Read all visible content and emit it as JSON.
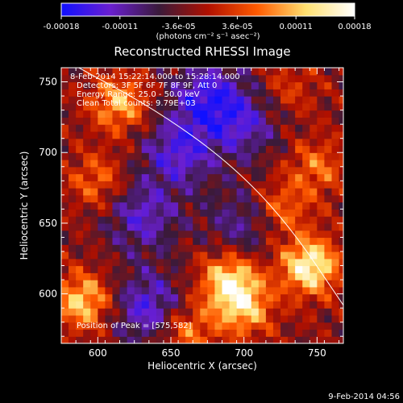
{
  "colorbar": {
    "tick_labels": [
      "-0.00018",
      "-0.00011",
      "-3.6e-05",
      "3.6e-05",
      "0.00011",
      "0.00018"
    ],
    "units_label": "(photons cm⁻² s⁻¹ asec⁻²)",
    "range": [
      -0.00018,
      0.00018
    ],
    "colors": [
      "#1010ff",
      "#6a1fd0",
      "#3a1a3a",
      "#b01000",
      "#ff5a00",
      "#ffe070",
      "#ffffff"
    ]
  },
  "info": {
    "time_range": "8-Feb-2014 15:22:14.000 to 15:28:14.000",
    "detectors": "Detectors: 3F 5F 6F 7F 8F 9F, Att 0",
    "energy": "Energy Range: 25.0 - 50.0 keV",
    "clean": "Clean    Total counts: 9.79E+03",
    "peak": "Position of Peak = [575,582]"
  },
  "footer": {
    "timestamp": "9-Feb-2014 04:56"
  },
  "chart_data": {
    "type": "heatmap",
    "title": "Reconstructed RHESSI Image",
    "xlabel": "Heliocentric X (arcsec)",
    "ylabel": "Heliocentric Y (arcsec)",
    "xlim": [
      575,
      768
    ],
    "ylim": [
      565,
      760
    ],
    "xticks": [
      600,
      650,
      700,
      750
    ],
    "yticks": [
      600,
      650,
      700,
      750
    ],
    "peak_position": [
      575,
      582
    ],
    "limb_curve": [
      [
        587,
        760
      ],
      [
        640,
        730
      ],
      [
        690,
        693
      ],
      [
        730,
        650
      ],
      [
        768,
        592
      ]
    ],
    "hotspots": [
      {
        "x": 745,
        "y": 620,
        "value": 0.00018
      },
      {
        "x": 690,
        "y": 610,
        "value": 0.00015
      },
      {
        "x": 700,
        "y": 590,
        "value": 0.00012
      },
      {
        "x": 590,
        "y": 595,
        "value": 0.00014
      },
      {
        "x": 615,
        "y": 735,
        "value": 0.00012
      },
      {
        "x": 660,
        "y": 575,
        "value": 0.0001
      },
      {
        "x": 750,
        "y": 690,
        "value": 8e-05
      },
      {
        "x": 725,
        "y": 660,
        "value": 9e-05
      },
      {
        "x": 600,
        "y": 680,
        "value": 8e-05
      },
      {
        "x": 730,
        "y": 745,
        "value": 5e-05
      }
    ],
    "coldspots": [
      {
        "x": 635,
        "y": 590,
        "value": -0.00012
      },
      {
        "x": 655,
        "y": 700,
        "value": -0.00011
      },
      {
        "x": 675,
        "y": 740,
        "value": -0.00012
      },
      {
        "x": 630,
        "y": 655,
        "value": -0.0001
      },
      {
        "x": 700,
        "y": 650,
        "value": -8e-05
      },
      {
        "x": 700,
        "y": 720,
        "value": -9e-05
      }
    ]
  }
}
